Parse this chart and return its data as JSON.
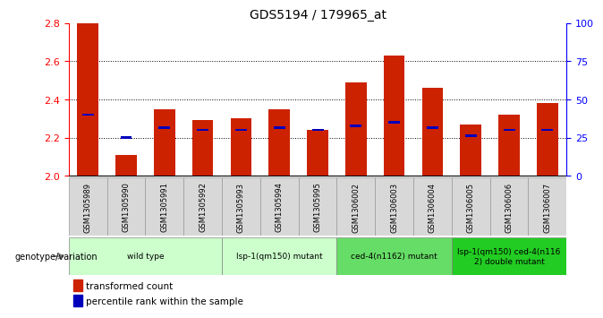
{
  "title": "GDS5194 / 179965_at",
  "samples": [
    "GSM1305989",
    "GSM1305990",
    "GSM1305991",
    "GSM1305992",
    "GSM1305993",
    "GSM1305994",
    "GSM1305995",
    "GSM1306002",
    "GSM1306003",
    "GSM1306004",
    "GSM1306005",
    "GSM1306006",
    "GSM1306007"
  ],
  "red_values": [
    2.8,
    2.11,
    2.35,
    2.29,
    2.3,
    2.35,
    2.24,
    2.49,
    2.63,
    2.46,
    2.27,
    2.32,
    2.38
  ],
  "blue_values": [
    2.32,
    2.2,
    2.25,
    2.24,
    2.24,
    2.25,
    2.24,
    2.26,
    2.28,
    2.25,
    2.21,
    2.24,
    2.24
  ],
  "ylim": [
    2.0,
    2.8
  ],
  "y2lim": [
    0,
    100
  ],
  "y_ticks": [
    2.0,
    2.2,
    2.4,
    2.6,
    2.8
  ],
  "y2_ticks": [
    0,
    25,
    50,
    75,
    100
  ],
  "group_defs": [
    {
      "indices": [
        0,
        1,
        2,
        3
      ],
      "label": "wild type",
      "color": "#ccffcc"
    },
    {
      "indices": [
        4,
        5,
        6
      ],
      "label": "lsp-1(qm150) mutant",
      "color": "#ccffcc"
    },
    {
      "indices": [
        7,
        8,
        9
      ],
      "label": "ced-4(n1162) mutant",
      "color": "#66dd66"
    },
    {
      "indices": [
        10,
        11,
        12
      ],
      "label": "lsp-1(qm150) ced-4(n116\n2) double mutant",
      "color": "#22cc22"
    }
  ],
  "base_value": 2.0,
  "legend_red": "transformed count",
  "legend_blue": "percentile rank within the sample",
  "gv_label": "genotype/variation"
}
